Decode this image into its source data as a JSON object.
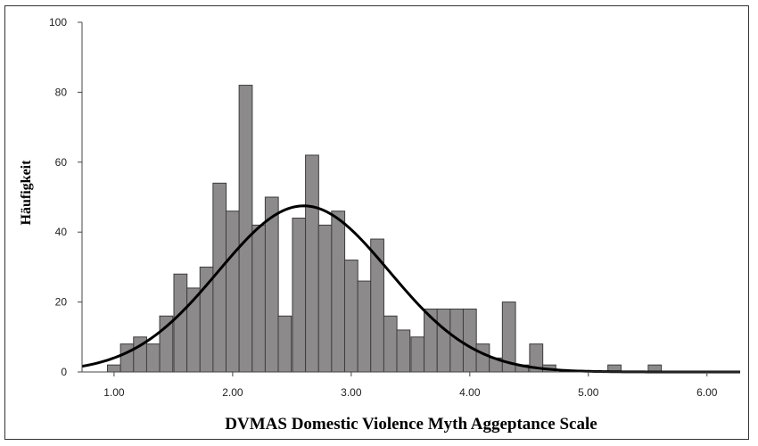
{
  "chart_data": {
    "type": "bar",
    "title": "",
    "xlabel": "DVMAS Domestic Violence Myth Aggeptance Scale",
    "ylabel": "Häufigkeit",
    "xlim": [
      0.73,
      6.28
    ],
    "ylim": [
      0,
      100
    ],
    "xticks": [
      1.0,
      2.0,
      3.0,
      4.0,
      5.0,
      6.0
    ],
    "xtick_labels": [
      "1.00",
      "2.00",
      "3.00",
      "4.00",
      "5.00",
      "6.00"
    ],
    "yticks": [
      0,
      20,
      40,
      60,
      80,
      100
    ],
    "ytick_labels": [
      "0",
      "20",
      "40",
      "60",
      "80",
      "100"
    ],
    "bin_width": 0.111,
    "bins": [
      {
        "x": 1.0,
        "count": 2
      },
      {
        "x": 1.11,
        "count": 8
      },
      {
        "x": 1.22,
        "count": 10
      },
      {
        "x": 1.33,
        "count": 8
      },
      {
        "x": 1.44,
        "count": 16
      },
      {
        "x": 1.56,
        "count": 28
      },
      {
        "x": 1.67,
        "count": 24
      },
      {
        "x": 1.78,
        "count": 30
      },
      {
        "x": 1.89,
        "count": 54
      },
      {
        "x": 2.0,
        "count": 46
      },
      {
        "x": 2.11,
        "count": 82
      },
      {
        "x": 2.22,
        "count": 42
      },
      {
        "x": 2.33,
        "count": 50
      },
      {
        "x": 2.44,
        "count": 16
      },
      {
        "x": 2.56,
        "count": 44
      },
      {
        "x": 2.67,
        "count": 62
      },
      {
        "x": 2.78,
        "count": 42
      },
      {
        "x": 2.89,
        "count": 46
      },
      {
        "x": 3.0,
        "count": 32
      },
      {
        "x": 3.11,
        "count": 26
      },
      {
        "x": 3.22,
        "count": 38
      },
      {
        "x": 3.33,
        "count": 16
      },
      {
        "x": 3.44,
        "count": 12
      },
      {
        "x": 3.56,
        "count": 10
      },
      {
        "x": 3.67,
        "count": 18
      },
      {
        "x": 3.78,
        "count": 18
      },
      {
        "x": 3.89,
        "count": 18
      },
      {
        "x": 4.0,
        "count": 18
      },
      {
        "x": 4.11,
        "count": 8
      },
      {
        "x": 4.22,
        "count": 4
      },
      {
        "x": 4.33,
        "count": 20
      },
      {
        "x": 4.44,
        "count": 2
      },
      {
        "x": 4.56,
        "count": 8
      },
      {
        "x": 4.67,
        "count": 2
      },
      {
        "x": 5.22,
        "count": 2
      },
      {
        "x": 5.56,
        "count": 2
      }
    ],
    "normal_curve": {
      "mean": 2.6,
      "sd": 0.72,
      "peak": 47.5
    },
    "grid": false,
    "legend": "none",
    "colors": {
      "bar_fill": "#8c8a8a",
      "bar_stroke": "#3c3c3c",
      "curve": "#000000",
      "frame": "#333333",
      "axis": "#444444"
    }
  }
}
